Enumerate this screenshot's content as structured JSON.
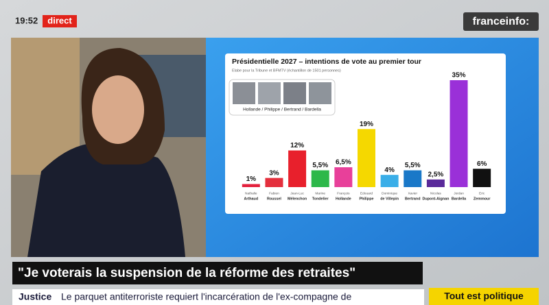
{
  "chart_data": {
    "type": "bar",
    "title": "Présidentielle 2027 – intentions de vote au premier tour",
    "subtitle": "Elabe pour la Tribune et BFMTV (échantillon de 1501 personnes)",
    "photo_caption": "Hollande / Philippe / Bertrand / Bardella",
    "first_names": [
      "Nathalie",
      "Fabien",
      "Jean-Luc",
      "Marine",
      "François",
      "Edouard",
      "Dominique",
      "Xavier",
      "Nicolas",
      "Jordan",
      "Eric"
    ],
    "categories": [
      "Arthaud",
      "Roussel",
      "Mélenchon",
      "Tondelier",
      "Hollande",
      "Philippe",
      "de Villepin",
      "Bertrand",
      "Dupont-Aignan",
      "Bardella",
      "Zemmour"
    ],
    "values": [
      1,
      3,
      12,
      5.5,
      6.5,
      19,
      4,
      5.5,
      2.5,
      35,
      6
    ],
    "value_labels": [
      "1%",
      "3%",
      "12%",
      "5,5%",
      "6,5%",
      "19%",
      "4%",
      "5,5%",
      "2,5%",
      "35%",
      "6%"
    ],
    "colors": [
      "#e3203c",
      "#e42f3d",
      "#e8202c",
      "#2db84a",
      "#e8409a",
      "#f5d800",
      "#3aaee8",
      "#1a78c8",
      "#5a2a9a",
      "#9a30d8",
      "#111111"
    ]
  },
  "broadcast": {
    "time": "19:52",
    "live": "direct",
    "channel": "franceinfo:",
    "quote": "\"Je voterais la suspension de la réforme des retraites\"",
    "ticker_tag": "Justice",
    "ticker_text": "Le parquet antiterroriste requiert l'incarcération de l'ex-compagne de",
    "show": "Tout est politique"
  }
}
